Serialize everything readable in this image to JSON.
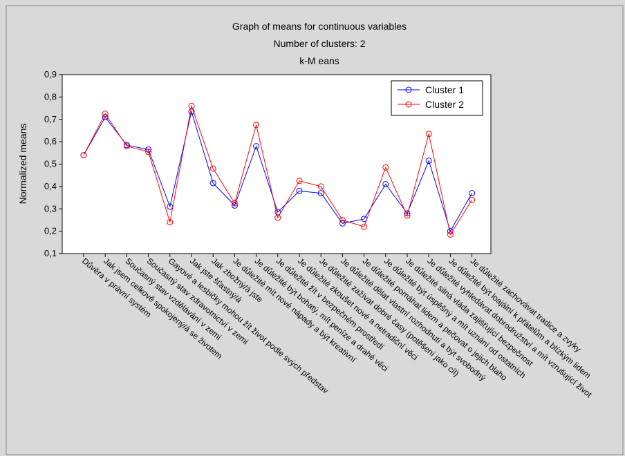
{
  "chart_data": {
    "type": "line",
    "title": "Graph of means for continuous variables",
    "subtitle": "Number of clusters: 2",
    "subtitle2": "k-M eans",
    "xlabel": "",
    "ylabel": "Normalized means",
    "ylim": [
      0.1,
      0.9
    ],
    "yticks": [
      "0,1",
      "0,2",
      "0,3",
      "0,4",
      "0,5",
      "0,6",
      "0,7",
      "0,8",
      "0,9"
    ],
    "grid": false,
    "legend_position": "top-right",
    "categories": [
      "Důvěra v právní systém",
      "Jak jsem celkově spokojený/á se životem",
      "Současný stav vzdělávání v zemi",
      "Současný stav zdravotnictví v zemi",
      "Gayové a lesbičky mohou žít život podle svých představ",
      "Jak jste šťastný/á",
      "Jak zbožný/á jste",
      "Je důležité mít nové nápady a být kreativní",
      "Je důležité být bohatý, mít peníze a drahé věci",
      "Je důležité žít v bezpečném prostředí",
      "Je důležité zkoušet nové a netradiční věci",
      "Je důležité zažívat dobré časy (potěšení jako cíl)",
      "Je důležité dělat vlastní rozhodnutí a být svobodný",
      "Je důležité pomáhat lidem a pečovat o jejich blaho",
      "Je důležité být úspěšný a mít uznání od ostatních",
      "Je důležité silná vláda zajišťující bezpečnost",
      "Je důležité vyhledávat dobrodružství a mít vzrušující život",
      "Je důležité být loajální k přátelům a blízkým lidem",
      "Je důležité zachovávat tradice a zvyky"
    ],
    "series": [
      {
        "name": "Cluster 1",
        "color": "#0000ff",
        "values": [
          0.54,
          0.71,
          0.585,
          0.565,
          0.31,
          0.735,
          0.415,
          0.315,
          0.58,
          0.285,
          0.38,
          0.37,
          0.235,
          0.255,
          0.41,
          0.28,
          0.515,
          0.2,
          0.37
        ]
      },
      {
        "name": "Cluster 2",
        "color": "#ff0000",
        "values": [
          0.54,
          0.725,
          0.58,
          0.555,
          0.24,
          0.76,
          0.48,
          0.325,
          0.675,
          0.26,
          0.425,
          0.4,
          0.25,
          0.22,
          0.485,
          0.27,
          0.635,
          0.185,
          0.34
        ]
      }
    ]
  }
}
